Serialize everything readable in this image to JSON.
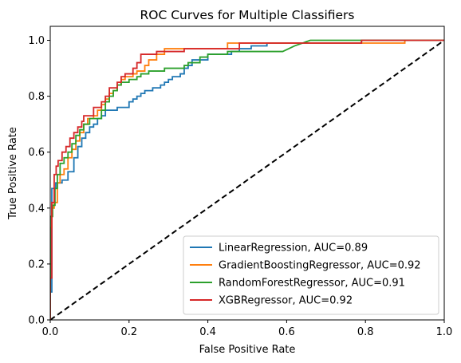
{
  "chart_data": {
    "type": "line",
    "title": "ROC Curves for Multiple Classifiers",
    "xlabel": "False Positive Rate",
    "ylabel": "True Positive Rate",
    "xlim": [
      0,
      1
    ],
    "ylim": [
      0,
      1.05
    ],
    "xticks": [
      0,
      0.2,
      0.4,
      0.6,
      0.8,
      1.0
    ],
    "yticks": [
      0,
      0.2,
      0.4,
      0.6,
      0.8,
      1.0
    ],
    "xtick_labels": [
      "0.0",
      "0.2",
      "0.4",
      "0.6",
      "0.8",
      "1.0"
    ],
    "ytick_labels": [
      "0.0",
      "0.2",
      "0.4",
      "0.6",
      "0.8",
      "1.0"
    ],
    "grid": false,
    "legend_position": "lower-right",
    "series": [
      {
        "name": "LinearRegression, AUC=0.89",
        "color": "#1f77b4",
        "points": [
          [
            0,
            0
          ],
          [
            0,
            0.1
          ],
          [
            0.004,
            0.1
          ],
          [
            0.004,
            0.47
          ],
          [
            0.014,
            0.47
          ],
          [
            0.014,
            0.49
          ],
          [
            0.03,
            0.49
          ],
          [
            0.03,
            0.5
          ],
          [
            0.045,
            0.5
          ],
          [
            0.045,
            0.53
          ],
          [
            0.06,
            0.53
          ],
          [
            0.06,
            0.58
          ],
          [
            0.07,
            0.58
          ],
          [
            0.07,
            0.62
          ],
          [
            0.08,
            0.62
          ],
          [
            0.08,
            0.65
          ],
          [
            0.09,
            0.65
          ],
          [
            0.09,
            0.67
          ],
          [
            0.1,
            0.67
          ],
          [
            0.1,
            0.69
          ],
          [
            0.11,
            0.69
          ],
          [
            0.11,
            0.7
          ],
          [
            0.12,
            0.7
          ],
          [
            0.12,
            0.72
          ],
          [
            0.13,
            0.72
          ],
          [
            0.13,
            0.73
          ],
          [
            0.14,
            0.73
          ],
          [
            0.14,
            0.75
          ],
          [
            0.17,
            0.75
          ],
          [
            0.17,
            0.76
          ],
          [
            0.2,
            0.76
          ],
          [
            0.2,
            0.78
          ],
          [
            0.21,
            0.78
          ],
          [
            0.21,
            0.79
          ],
          [
            0.22,
            0.79
          ],
          [
            0.22,
            0.8
          ],
          [
            0.23,
            0.8
          ],
          [
            0.23,
            0.81
          ],
          [
            0.24,
            0.81
          ],
          [
            0.24,
            0.82
          ],
          [
            0.26,
            0.82
          ],
          [
            0.26,
            0.83
          ],
          [
            0.28,
            0.83
          ],
          [
            0.28,
            0.84
          ],
          [
            0.29,
            0.84
          ],
          [
            0.29,
            0.85
          ],
          [
            0.3,
            0.85
          ],
          [
            0.3,
            0.86
          ],
          [
            0.31,
            0.86
          ],
          [
            0.31,
            0.87
          ],
          [
            0.33,
            0.87
          ],
          [
            0.33,
            0.88
          ],
          [
            0.34,
            0.88
          ],
          [
            0.34,
            0.9
          ],
          [
            0.35,
            0.9
          ],
          [
            0.35,
            0.91
          ],
          [
            0.36,
            0.91
          ],
          [
            0.36,
            0.93
          ],
          [
            0.4,
            0.93
          ],
          [
            0.4,
            0.95
          ],
          [
            0.46,
            0.95
          ],
          [
            0.46,
            0.96
          ],
          [
            0.48,
            0.96
          ],
          [
            0.48,
            0.97
          ],
          [
            0.51,
            0.97
          ],
          [
            0.51,
            0.98
          ],
          [
            0.55,
            0.98
          ],
          [
            0.55,
            0.99
          ],
          [
            0.79,
            0.99
          ],
          [
            0.79,
            1.0
          ],
          [
            1.0,
            1.0
          ]
        ]
      },
      {
        "name": "GradientBoostingRegressor, AUC=0.92",
        "color": "#ff7f0e",
        "points": [
          [
            0,
            0
          ],
          [
            0,
            0.33
          ],
          [
            0.004,
            0.33
          ],
          [
            0.004,
            0.4
          ],
          [
            0.01,
            0.4
          ],
          [
            0.01,
            0.42
          ],
          [
            0.018,
            0.42
          ],
          [
            0.018,
            0.49
          ],
          [
            0.025,
            0.49
          ],
          [
            0.025,
            0.52
          ],
          [
            0.035,
            0.52
          ],
          [
            0.035,
            0.54
          ],
          [
            0.045,
            0.54
          ],
          [
            0.045,
            0.58
          ],
          [
            0.055,
            0.58
          ],
          [
            0.055,
            0.61
          ],
          [
            0.065,
            0.61
          ],
          [
            0.065,
            0.64
          ],
          [
            0.075,
            0.64
          ],
          [
            0.075,
            0.67
          ],
          [
            0.085,
            0.67
          ],
          [
            0.085,
            0.7
          ],
          [
            0.095,
            0.7
          ],
          [
            0.095,
            0.72
          ],
          [
            0.11,
            0.72
          ],
          [
            0.11,
            0.73
          ],
          [
            0.12,
            0.73
          ],
          [
            0.12,
            0.75
          ],
          [
            0.13,
            0.75
          ],
          [
            0.13,
            0.77
          ],
          [
            0.14,
            0.77
          ],
          [
            0.14,
            0.79
          ],
          [
            0.15,
            0.79
          ],
          [
            0.15,
            0.81
          ],
          [
            0.16,
            0.81
          ],
          [
            0.16,
            0.82
          ],
          [
            0.17,
            0.82
          ],
          [
            0.17,
            0.84
          ],
          [
            0.18,
            0.84
          ],
          [
            0.18,
            0.86
          ],
          [
            0.19,
            0.86
          ],
          [
            0.19,
            0.87
          ],
          [
            0.21,
            0.87
          ],
          [
            0.21,
            0.88
          ],
          [
            0.22,
            0.88
          ],
          [
            0.22,
            0.89
          ],
          [
            0.24,
            0.89
          ],
          [
            0.24,
            0.91
          ],
          [
            0.25,
            0.91
          ],
          [
            0.25,
            0.93
          ],
          [
            0.27,
            0.93
          ],
          [
            0.27,
            0.95
          ],
          [
            0.29,
            0.95
          ],
          [
            0.29,
            0.97
          ],
          [
            0.45,
            0.97
          ],
          [
            0.45,
            0.99
          ],
          [
            0.9,
            0.99
          ],
          [
            0.9,
            1.0
          ],
          [
            1.0,
            1.0
          ]
        ]
      },
      {
        "name": "RandomForestRegressor, AUC=0.91",
        "color": "#2ca02c",
        "points": [
          [
            0,
            0
          ],
          [
            0,
            0.37
          ],
          [
            0.006,
            0.37
          ],
          [
            0.006,
            0.41
          ],
          [
            0.012,
            0.41
          ],
          [
            0.012,
            0.47
          ],
          [
            0.018,
            0.47
          ],
          [
            0.018,
            0.52
          ],
          [
            0.025,
            0.52
          ],
          [
            0.025,
            0.56
          ],
          [
            0.035,
            0.56
          ],
          [
            0.035,
            0.58
          ],
          [
            0.045,
            0.58
          ],
          [
            0.045,
            0.6
          ],
          [
            0.055,
            0.6
          ],
          [
            0.055,
            0.63
          ],
          [
            0.065,
            0.63
          ],
          [
            0.065,
            0.66
          ],
          [
            0.075,
            0.66
          ],
          [
            0.075,
            0.68
          ],
          [
            0.085,
            0.68
          ],
          [
            0.085,
            0.7
          ],
          [
            0.1,
            0.7
          ],
          [
            0.1,
            0.72
          ],
          [
            0.13,
            0.72
          ],
          [
            0.13,
            0.75
          ],
          [
            0.14,
            0.75
          ],
          [
            0.14,
            0.78
          ],
          [
            0.15,
            0.78
          ],
          [
            0.15,
            0.8
          ],
          [
            0.16,
            0.8
          ],
          [
            0.16,
            0.82
          ],
          [
            0.17,
            0.82
          ],
          [
            0.17,
            0.84
          ],
          [
            0.18,
            0.84
          ],
          [
            0.18,
            0.85
          ],
          [
            0.2,
            0.85
          ],
          [
            0.2,
            0.86
          ],
          [
            0.22,
            0.86
          ],
          [
            0.22,
            0.87
          ],
          [
            0.23,
            0.87
          ],
          [
            0.23,
            0.88
          ],
          [
            0.25,
            0.88
          ],
          [
            0.25,
            0.89
          ],
          [
            0.29,
            0.89
          ],
          [
            0.29,
            0.9
          ],
          [
            0.34,
            0.9
          ],
          [
            0.34,
            0.91
          ],
          [
            0.35,
            0.91
          ],
          [
            0.35,
            0.92
          ],
          [
            0.38,
            0.92
          ],
          [
            0.38,
            0.94
          ],
          [
            0.4,
            0.94
          ],
          [
            0.4,
            0.95
          ],
          [
            0.45,
            0.95
          ],
          [
            0.45,
            0.96
          ],
          [
            0.59,
            0.96
          ],
          [
            0.62,
            0.98
          ],
          [
            0.66,
            1.0
          ],
          [
            1.0,
            1.0
          ]
        ]
      },
      {
        "name": "XGBRegressor, AUC=0.92",
        "color": "#d62728",
        "points": [
          [
            0,
            0
          ],
          [
            0,
            0.15
          ],
          [
            0.004,
            0.15
          ],
          [
            0.004,
            0.42
          ],
          [
            0.01,
            0.42
          ],
          [
            0.01,
            0.52
          ],
          [
            0.015,
            0.52
          ],
          [
            0.015,
            0.55
          ],
          [
            0.02,
            0.55
          ],
          [
            0.02,
            0.57
          ],
          [
            0.03,
            0.57
          ],
          [
            0.03,
            0.6
          ],
          [
            0.04,
            0.6
          ],
          [
            0.04,
            0.62
          ],
          [
            0.05,
            0.62
          ],
          [
            0.05,
            0.65
          ],
          [
            0.06,
            0.65
          ],
          [
            0.06,
            0.67
          ],
          [
            0.07,
            0.67
          ],
          [
            0.07,
            0.69
          ],
          [
            0.08,
            0.69
          ],
          [
            0.08,
            0.71
          ],
          [
            0.085,
            0.71
          ],
          [
            0.085,
            0.73
          ],
          [
            0.11,
            0.73
          ],
          [
            0.11,
            0.76
          ],
          [
            0.13,
            0.76
          ],
          [
            0.13,
            0.78
          ],
          [
            0.14,
            0.78
          ],
          [
            0.14,
            0.8
          ],
          [
            0.15,
            0.8
          ],
          [
            0.15,
            0.83
          ],
          [
            0.17,
            0.83
          ],
          [
            0.17,
            0.85
          ],
          [
            0.18,
            0.85
          ],
          [
            0.18,
            0.87
          ],
          [
            0.19,
            0.87
          ],
          [
            0.19,
            0.88
          ],
          [
            0.21,
            0.88
          ],
          [
            0.21,
            0.9
          ],
          [
            0.22,
            0.9
          ],
          [
            0.22,
            0.92
          ],
          [
            0.23,
            0.92
          ],
          [
            0.23,
            0.95
          ],
          [
            0.27,
            0.95
          ],
          [
            0.27,
            0.96
          ],
          [
            0.34,
            0.96
          ],
          [
            0.34,
            0.97
          ],
          [
            0.48,
            0.97
          ],
          [
            0.48,
            0.99
          ],
          [
            0.79,
            0.99
          ],
          [
            0.79,
            1.0
          ],
          [
            1.0,
            1.0
          ]
        ]
      }
    ],
    "reference_line": {
      "points": [
        [
          0,
          0
        ],
        [
          1,
          1
        ]
      ],
      "style": "dashed",
      "color": "#000000"
    }
  }
}
